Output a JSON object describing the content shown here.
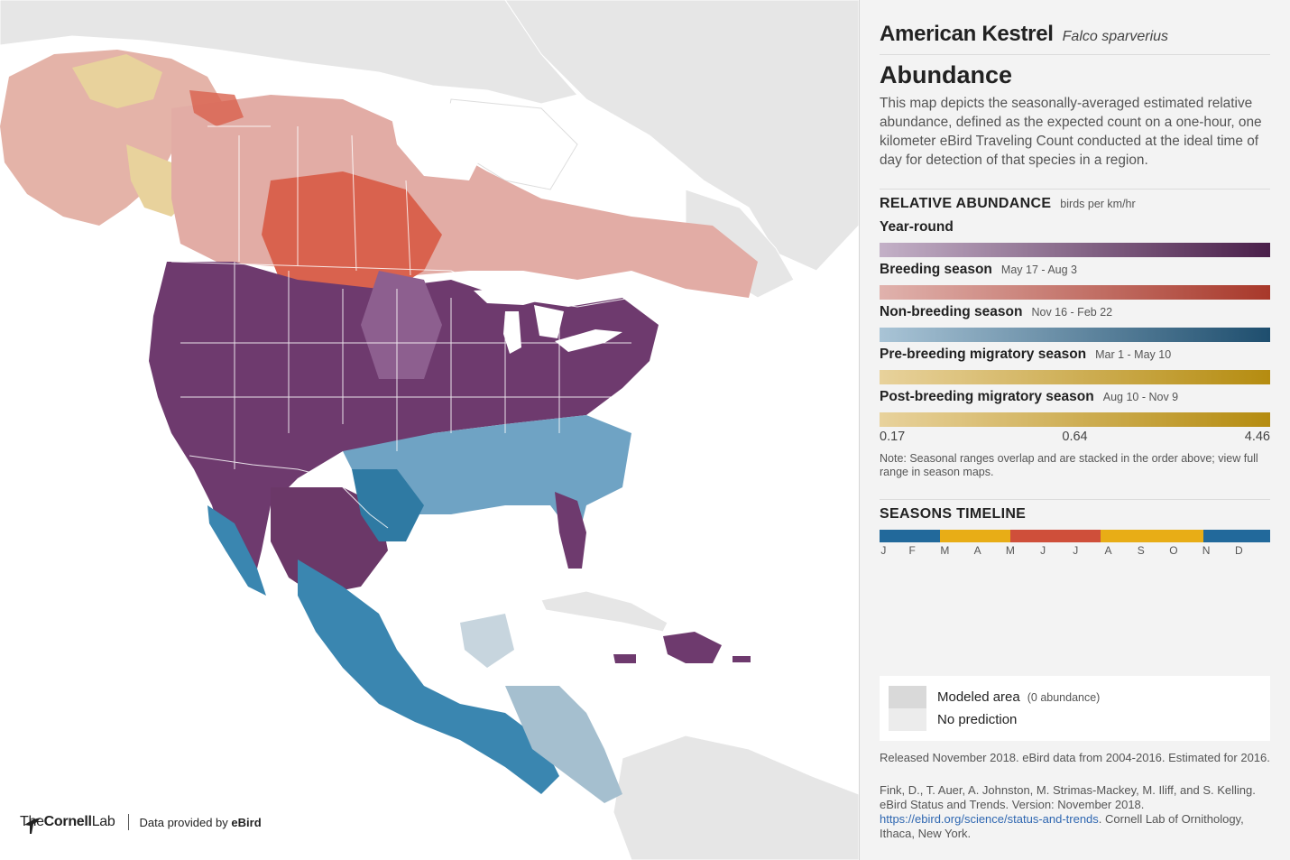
{
  "species": {
    "common_name": "American Kestrel",
    "scientific_name": "Falco sparverius"
  },
  "abundance": {
    "title": "Abundance",
    "description": "This map depicts the seasonally-averaged estimated relative abundance, defined as the expected count on a one-hour, one kilometer eBird Traveling Count conducted at the ideal time of day for detection of that species in a region."
  },
  "relative_abundance": {
    "title": "RELATIVE ABUNDANCE",
    "unit": "birds per km/hr",
    "seasons": [
      {
        "name": "Year-round",
        "dates": "",
        "color_low": "#c3b0c7",
        "color_high": "#4a1f4a"
      },
      {
        "name": "Breeding season",
        "dates": "May 17 - Aug 3",
        "color_low": "#e0b2ad",
        "color_high": "#a8382a"
      },
      {
        "name": "Non-breeding season",
        "dates": "Nov 16 - Feb 22",
        "color_low": "#a9c4d6",
        "color_high": "#1e4e6e"
      },
      {
        "name": "Pre-breeding migratory season",
        "dates": "Mar 1 - May 10",
        "color_low": "#e8d29c",
        "color_high": "#b58c10"
      },
      {
        "name": "Post-breeding migratory season",
        "dates": "Aug 10 - Nov 9",
        "color_low": "#e8d29c",
        "color_high": "#b58c10"
      }
    ],
    "scale_min": "0.17",
    "scale_mid": "0.64",
    "scale_max": "4.46",
    "note": "Note: Seasonal ranges overlap and are stacked in the order above; view full range in season maps."
  },
  "timeline": {
    "title": "SEASONS TIMELINE",
    "months": [
      "J",
      "F",
      "M",
      "A",
      "M",
      "J",
      "J",
      "A",
      "S",
      "O",
      "N",
      "D"
    ],
    "segments": [
      {
        "season": "non-breeding",
        "fraction": 0.155,
        "color": "#22699b"
      },
      {
        "season": "pre-breeding migration",
        "fraction": 0.18,
        "color": "#e8ad16"
      },
      {
        "season": "breeding",
        "fraction": 0.23,
        "color": "#cf4f3a"
      },
      {
        "season": "post-breeding migration",
        "fraction": 0.265,
        "color": "#e8ad16"
      },
      {
        "season": "non-breeding",
        "fraction": 0.17,
        "color": "#22699b"
      }
    ]
  },
  "legend": {
    "modeled_label": "Modeled area",
    "modeled_sub": "(0 abundance)",
    "modeled_color": "#d9d9d9",
    "no_prediction_label": "No prediction",
    "no_prediction_color": "#ececec"
  },
  "footer": {
    "released": "Released November 2018. eBird data from 2004-2016. Estimated for 2016.",
    "citation": "Fink, D., T. Auer, A. Johnston, M. Strimas-Mackey, M. Iliff, and S. Kelling. eBird Status and Trends. Version: November 2018.",
    "link_text": "https://ebird.org/science/status-and-trends",
    "citation_tail": ". Cornell Lab of Ornithology, Ithaca, New York."
  },
  "credits": {
    "logo_prefix": "The",
    "logo_bold": "Cornell",
    "logo_suffix": "Lab",
    "data_prefix": "Data provided by ",
    "data_source": "eBird"
  },
  "colors": {
    "panel_bg": "#f3f3f3",
    "land_gray": "#e4e4e4",
    "year_round": "#6e3a6e",
    "breeding": "#d96a55",
    "non_breeding": "#2f7aa3",
    "migration": "#e0c36a"
  }
}
